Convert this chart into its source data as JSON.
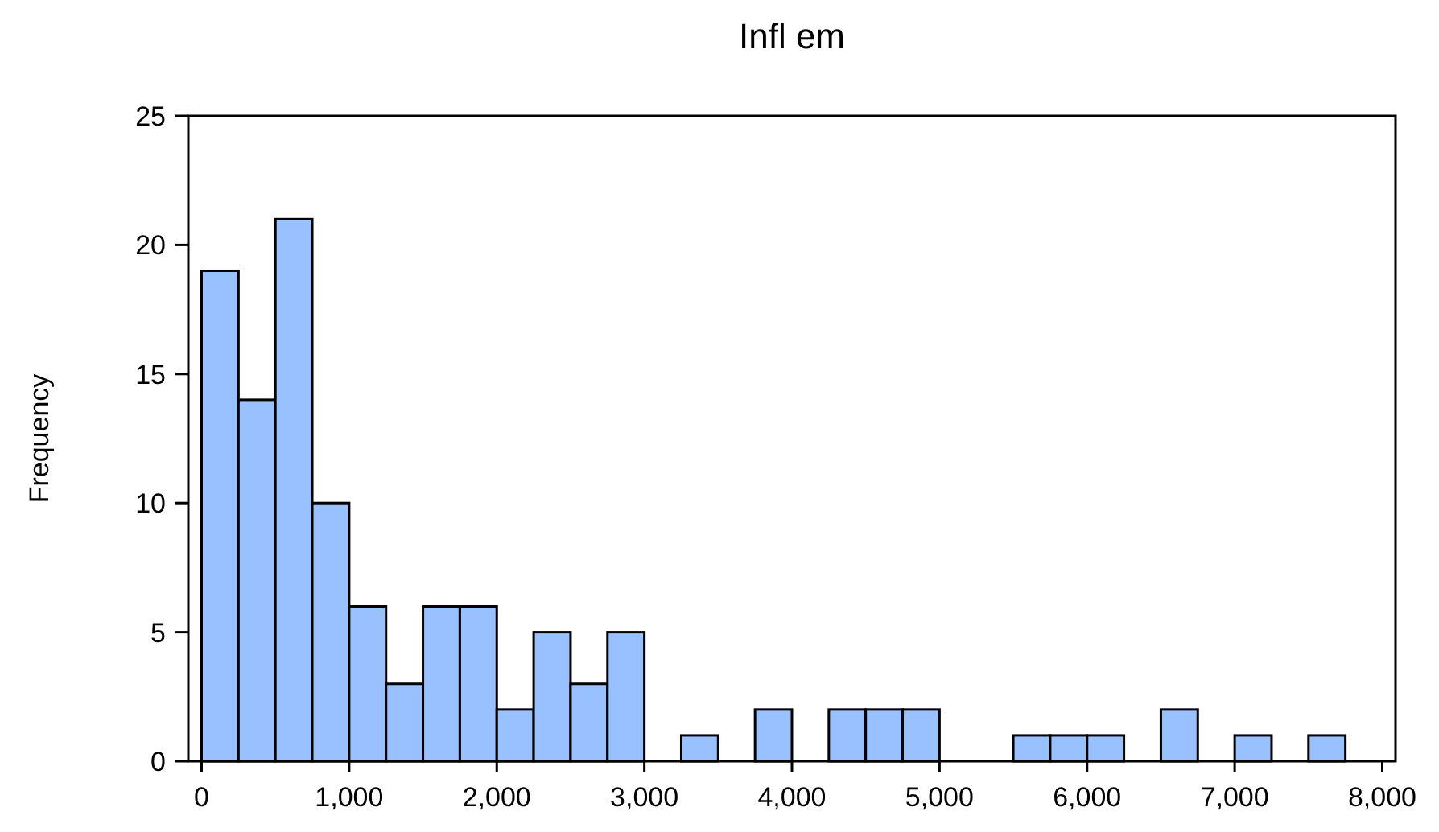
{
  "chart_data": {
    "type": "histogram",
    "title": "Infl em",
    "ylabel": "Frequency",
    "bins": [
      0,
      250,
      500,
      750,
      1000,
      1250,
      1500,
      1750,
      2000,
      2250,
      2500,
      2750,
      3000,
      3250,
      3500,
      3750,
      4000,
      4250,
      4500,
      4750,
      5000,
      5250,
      5500,
      5750,
      6000,
      6250,
      6500,
      6750,
      7000,
      7250,
      7500,
      7750
    ],
    "values": [
      19,
      14,
      21,
      10,
      6,
      3,
      6,
      6,
      2,
      5,
      3,
      5,
      0,
      1,
      0,
      2,
      0,
      2,
      2,
      2,
      0,
      0,
      1,
      1,
      1,
      0,
      2,
      0,
      1,
      0,
      1
    ],
    "color": "#99c0ff",
    "xlim": [
      -90,
      8090
    ],
    "xticks": [
      {
        "value": 0,
        "label": "0"
      },
      {
        "value": 1000,
        "label": "1,000"
      },
      {
        "value": 2000,
        "label": "2,000"
      },
      {
        "value": 3000,
        "label": "3,000"
      },
      {
        "value": 4000,
        "label": "4,000"
      },
      {
        "value": 5000,
        "label": "5,000"
      },
      {
        "value": 6000,
        "label": "6,000"
      },
      {
        "value": 7000,
        "label": "7,000"
      },
      {
        "value": 8000,
        "label": "8,000"
      }
    ],
    "ylim": [
      0,
      25
    ],
    "yticks": [
      0,
      5,
      10,
      15,
      20,
      25
    ],
    "grid": false
  }
}
